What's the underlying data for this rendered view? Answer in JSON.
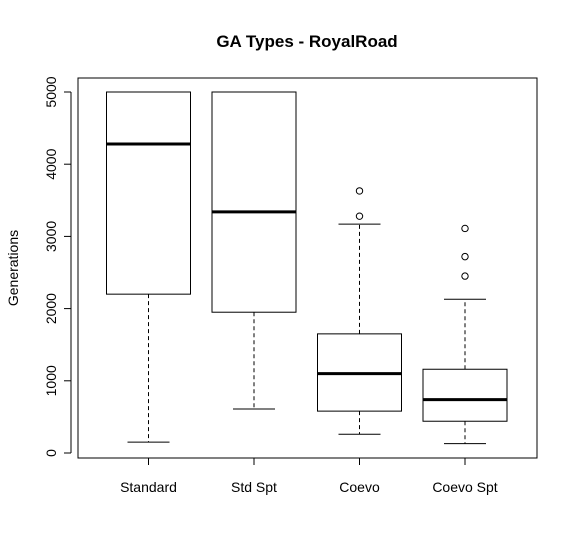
{
  "chart_data": {
    "type": "box",
    "title": "GA Types - RoyalRoad",
    "xlabel": "",
    "ylabel": "Generations",
    "ylim": [
      0,
      5000
    ],
    "y_ticks": [
      0,
      1000,
      2000,
      3000,
      4000,
      5000
    ],
    "categories": [
      "Standard",
      "Std Spt",
      "Coevo",
      "Coevo Spt"
    ],
    "boxes": [
      {
        "category": "Standard",
        "min": 150,
        "q1": 2200,
        "median": 4280,
        "q3": 5000,
        "max": 5000,
        "outliers": []
      },
      {
        "category": "Std Spt",
        "min": 610,
        "q1": 1950,
        "median": 3340,
        "q3": 5000,
        "max": 5000,
        "outliers": []
      },
      {
        "category": "Coevo",
        "min": 260,
        "q1": 580,
        "median": 1100,
        "q3": 1650,
        "max": 3170,
        "outliers": [
          3280,
          3630
        ]
      },
      {
        "category": "Coevo Spt",
        "min": 130,
        "q1": 440,
        "median": 740,
        "q3": 1160,
        "max": 2130,
        "outliers": [
          2450,
          2720,
          3110
        ]
      }
    ],
    "colors": {
      "stroke": "#000000",
      "background": "#ffffff"
    }
  }
}
